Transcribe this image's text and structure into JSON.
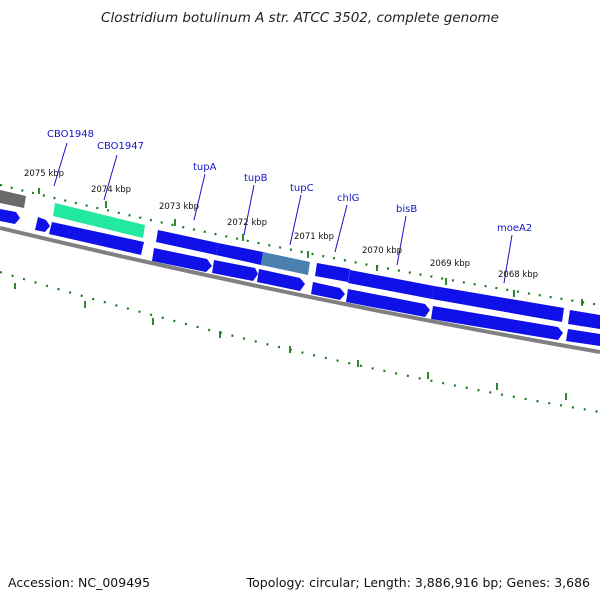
{
  "title": "Clostridium botulinum A str. ATCC 3502, complete genome",
  "accession": "Accession: NC_009495",
  "topology": "Topology: circular; Length: 3,886,916 bp; Genes: 3,686",
  "tick_labels": [
    "2075 kbp",
    "2074 kbp",
    "2073 kbp",
    "2072 kbp",
    "2071 kbp",
    "2070 kbp",
    "2069 kbp",
    "2068 kbp"
  ],
  "gene_labels": [
    "CBO1948",
    "CBO1947",
    "tupA",
    "tupB",
    "tupC",
    "chlG",
    "bisB",
    "moeA2"
  ],
  "colors": {
    "cds": "#1010e8",
    "highlight_green": "#22e8a0",
    "highlight_steel": "#4a80b0",
    "gray_feature": "#707070",
    "backbone": "#808080",
    "tick": "#1a7a1a",
    "label": "#1414c8"
  }
}
